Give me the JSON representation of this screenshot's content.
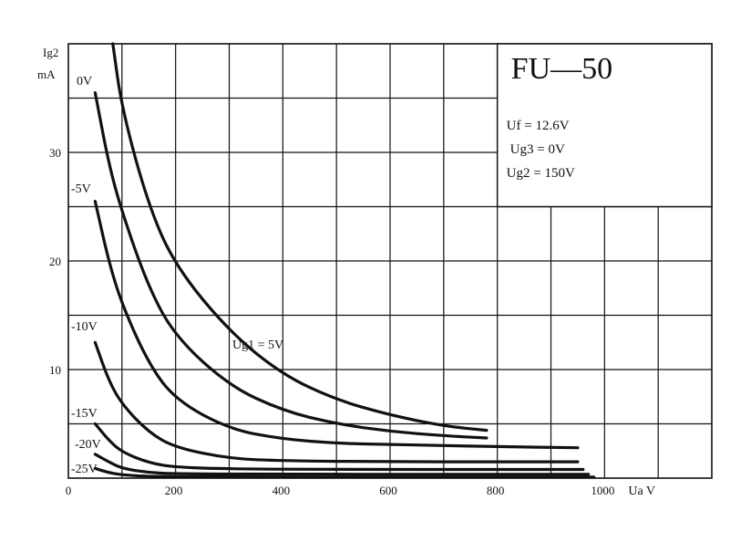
{
  "chart_data": {
    "type": "line",
    "title": "FU—50",
    "ylabel_line1": "Ig2",
    "ylabel_line2": "mA",
    "xlabel": "Ua V",
    "xlim": [
      0,
      1200
    ],
    "ylim": [
      0,
      40
    ],
    "x_ticks": [
      0,
      200,
      400,
      600,
      800,
      1000
    ],
    "y_ticks": [
      10,
      20,
      30
    ],
    "grid": true,
    "conditions": [
      "Uf = 12.6V",
      "Ug3 = 0V",
      "Ug2 = 150V"
    ],
    "series": [
      {
        "name": "Ug1 = 5V",
        "points": [
          [
            83,
            40
          ],
          [
            100,
            34
          ],
          [
            150,
            25
          ],
          [
            200,
            19.5
          ],
          [
            300,
            13.5
          ],
          [
            400,
            9.5
          ],
          [
            500,
            7.2
          ],
          [
            600,
            5.8
          ],
          [
            700,
            4.8
          ],
          [
            780,
            4.4
          ]
        ]
      },
      {
        "name": "0V",
        "points": [
          [
            50,
            35.5
          ],
          [
            75,
            29
          ],
          [
            100,
            24.5
          ],
          [
            150,
            17.5
          ],
          [
            200,
            13
          ],
          [
            300,
            8.5
          ],
          [
            400,
            6.2
          ],
          [
            500,
            5
          ],
          [
            600,
            4.3
          ],
          [
            700,
            3.9
          ],
          [
            780,
            3.7
          ]
        ]
      },
      {
        "name": "-5V",
        "points": [
          [
            50,
            25.5
          ],
          [
            75,
            20
          ],
          [
            100,
            16
          ],
          [
            150,
            10.5
          ],
          [
            200,
            7.2
          ],
          [
            300,
            4.5
          ],
          [
            400,
            3.6
          ],
          [
            500,
            3.2
          ],
          [
            600,
            3.1
          ],
          [
            700,
            3.0
          ],
          [
            800,
            2.9
          ],
          [
            950,
            2.8
          ]
        ]
      },
      {
        "name": "-10V",
        "points": [
          [
            50,
            12.5
          ],
          [
            75,
            9
          ],
          [
            100,
            6.8
          ],
          [
            150,
            4.2
          ],
          [
            200,
            2.8
          ],
          [
            300,
            1.8
          ],
          [
            400,
            1.6
          ],
          [
            600,
            1.5
          ],
          [
            800,
            1.5
          ],
          [
            950,
            1.5
          ]
        ]
      },
      {
        "name": "-15V",
        "points": [
          [
            50,
            5
          ],
          [
            75,
            3.5
          ],
          [
            100,
            2.4
          ],
          [
            150,
            1.4
          ],
          [
            200,
            1.0
          ],
          [
            300,
            0.85
          ],
          [
            500,
            0.8
          ],
          [
            800,
            0.8
          ],
          [
            960,
            0.8
          ]
        ]
      },
      {
        "name": "-20V",
        "points": [
          [
            50,
            2.2
          ],
          [
            75,
            1.5
          ],
          [
            100,
            0.9
          ],
          [
            150,
            0.5
          ],
          [
            200,
            0.4
          ],
          [
            400,
            0.35
          ],
          [
            700,
            0.35
          ],
          [
            970,
            0.35
          ]
        ]
      },
      {
        "name": "-25V",
        "points": [
          [
            50,
            0.9
          ],
          [
            75,
            0.5
          ],
          [
            100,
            0.3
          ],
          [
            150,
            0.15
          ],
          [
            300,
            0.1
          ],
          [
            600,
            0.1
          ],
          [
            980,
            0.1
          ]
        ]
      }
    ]
  }
}
